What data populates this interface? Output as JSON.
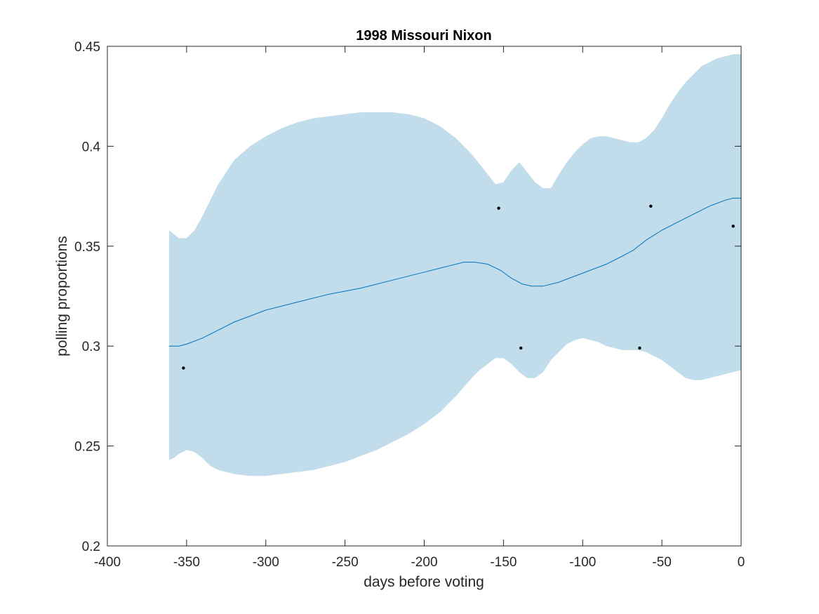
{
  "chart_data": {
    "type": "line",
    "title": "1998 Missouri Nixon",
    "xlabel": "days before voting",
    "ylabel": "polling proportions",
    "xlim": [
      -400,
      0
    ],
    "ylim": [
      0.2,
      0.45
    ],
    "x_ticks": [
      -400,
      -350,
      -300,
      -250,
      -200,
      -150,
      -100,
      -50,
      0
    ],
    "x_tick_labels": [
      "-400",
      "-350",
      "-300",
      "-250",
      "-200",
      "-150",
      "-100",
      "-50",
      "0"
    ],
    "y_ticks": [
      0.2,
      0.25,
      0.3,
      0.35,
      0.4,
      0.45
    ],
    "y_tick_labels": [
      "0.2",
      "0.25",
      "0.3",
      "0.35",
      "0.4",
      "0.45"
    ],
    "grid": false,
    "legend": "none",
    "colors": {
      "band": "#c1dcea",
      "line": "#0072bd",
      "points": "#000000",
      "axes": "#262626"
    },
    "mean_curve": {
      "x": [
        -361,
        -355,
        -350,
        -340,
        -330,
        -320,
        -310,
        -300,
        -280,
        -260,
        -240,
        -220,
        -200,
        -185,
        -175,
        -168,
        -160,
        -152,
        -145,
        -138,
        -132,
        -125,
        -115,
        -105,
        -95,
        -85,
        -75,
        -68,
        -60,
        -50,
        -40,
        -30,
        -20,
        -10,
        -5,
        0
      ],
      "y": [
        0.3,
        0.3,
        0.301,
        0.304,
        0.308,
        0.312,
        0.315,
        0.318,
        0.322,
        0.326,
        0.329,
        0.333,
        0.337,
        0.34,
        0.342,
        0.342,
        0.341,
        0.338,
        0.334,
        0.331,
        0.33,
        0.33,
        0.332,
        0.335,
        0.338,
        0.341,
        0.345,
        0.348,
        0.353,
        0.358,
        0.362,
        0.366,
        0.37,
        0.373,
        0.374,
        0.374
      ]
    },
    "confidence_band": {
      "x": [
        -361,
        -358,
        -355,
        -350,
        -345,
        -340,
        -335,
        -330,
        -320,
        -310,
        -300,
        -290,
        -280,
        -270,
        -260,
        -250,
        -240,
        -230,
        -220,
        -210,
        -200,
        -190,
        -180,
        -170,
        -165,
        -160,
        -155,
        -150,
        -145,
        -140,
        -135,
        -130,
        -125,
        -120,
        -115,
        -110,
        -105,
        -100,
        -95,
        -90,
        -85,
        -80,
        -75,
        -70,
        -65,
        -60,
        -55,
        -50,
        -45,
        -40,
        -35,
        -30,
        -25,
        -20,
        -15,
        -10,
        -5,
        0
      ],
      "upper": [
        0.358,
        0.356,
        0.354,
        0.354,
        0.358,
        0.365,
        0.373,
        0.381,
        0.393,
        0.4,
        0.405,
        0.409,
        0.412,
        0.414,
        0.415,
        0.416,
        0.417,
        0.417,
        0.417,
        0.416,
        0.414,
        0.41,
        0.404,
        0.396,
        0.391,
        0.386,
        0.381,
        0.382,
        0.388,
        0.392,
        0.387,
        0.382,
        0.379,
        0.379,
        0.386,
        0.392,
        0.397,
        0.401,
        0.404,
        0.405,
        0.405,
        0.404,
        0.403,
        0.402,
        0.402,
        0.404,
        0.408,
        0.414,
        0.421,
        0.427,
        0.432,
        0.436,
        0.44,
        0.442,
        0.444,
        0.445,
        0.446,
        0.446
      ],
      "lower": [
        0.243,
        0.244,
        0.246,
        0.248,
        0.247,
        0.244,
        0.24,
        0.238,
        0.236,
        0.235,
        0.235,
        0.236,
        0.237,
        0.238,
        0.24,
        0.242,
        0.245,
        0.248,
        0.252,
        0.256,
        0.261,
        0.267,
        0.275,
        0.284,
        0.288,
        0.291,
        0.294,
        0.294,
        0.291,
        0.287,
        0.284,
        0.284,
        0.287,
        0.293,
        0.297,
        0.301,
        0.303,
        0.304,
        0.303,
        0.302,
        0.3,
        0.299,
        0.298,
        0.298,
        0.298,
        0.297,
        0.295,
        0.293,
        0.29,
        0.287,
        0.284,
        0.283,
        0.283,
        0.284,
        0.285,
        0.286,
        0.287,
        0.288
      ]
    },
    "points": {
      "x": [
        -352,
        -153,
        -139,
        -64,
        -57,
        -5
      ],
      "y": [
        0.289,
        0.369,
        0.299,
        0.299,
        0.37,
        0.36
      ]
    }
  }
}
